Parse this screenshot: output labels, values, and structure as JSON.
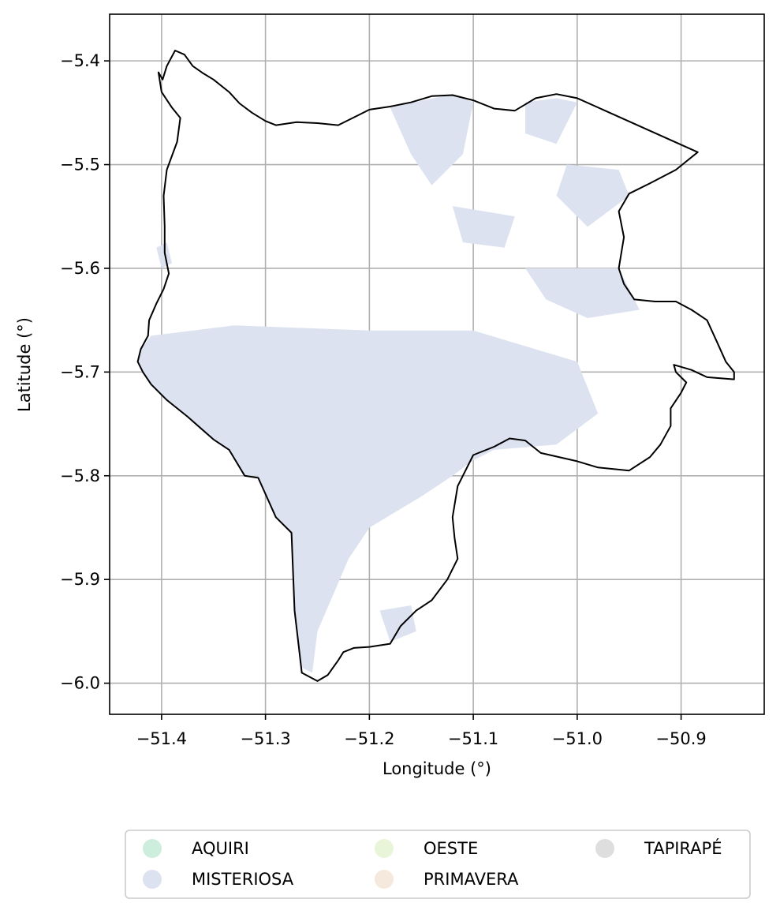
{
  "chart_data": {
    "type": "map",
    "xlabel": "Longitude (°)",
    "ylabel": "Latitude (°)",
    "xlim": [
      -51.45,
      -50.82
    ],
    "ylim": [
      -6.03,
      -5.355
    ],
    "xticks": [
      -51.4,
      -51.3,
      -51.2,
      -51.1,
      -51.0,
      -50.9
    ],
    "xtick_labels": [
      "−51.4",
      "−51.3",
      "−51.2",
      "−51.1",
      "−51.0",
      "−50.9"
    ],
    "yticks": [
      -5.4,
      -5.5,
      -5.6,
      -5.7,
      -5.8,
      -5.9,
      -6.0
    ],
    "ytick_labels": [
      "−5.4",
      "−5.5",
      "−5.6",
      "−5.7",
      "−5.8",
      "−5.9",
      "−6.0"
    ],
    "grid": true,
    "legend_position": "bottom",
    "legend": [
      {
        "label": "AQUIRI",
        "color": "#cdeedd"
      },
      {
        "label": "MISTERIOSA",
        "color": "#dde2f1"
      },
      {
        "label": "OESTE",
        "color": "#e9f5d8"
      },
      {
        "label": "PRIMAVERA",
        "color": "#f4e9dc"
      },
      {
        "label": "TAPIRAPÉ",
        "color": "#dedede"
      }
    ],
    "boundary": [
      [
        -51.403,
        -5.411
      ],
      [
        -51.399,
        -5.418
      ],
      [
        -51.395,
        -5.405
      ],
      [
        -51.387,
        -5.39
      ],
      [
        -51.378,
        -5.394
      ],
      [
        -51.37,
        -5.405
      ],
      [
        -51.36,
        -5.412
      ],
      [
        -51.35,
        -5.418
      ],
      [
        -51.335,
        -5.43
      ],
      [
        -51.325,
        -5.441
      ],
      [
        -51.313,
        -5.45
      ],
      [
        -51.3,
        -5.458
      ],
      [
        -51.29,
        -5.462
      ],
      [
        -51.27,
        -5.459
      ],
      [
        -51.25,
        -5.46
      ],
      [
        -51.23,
        -5.462
      ],
      [
        -51.21,
        -5.452
      ],
      [
        -51.2,
        -5.447
      ],
      [
        -51.18,
        -5.444
      ],
      [
        -51.16,
        -5.44
      ],
      [
        -51.14,
        -5.434
      ],
      [
        -51.12,
        -5.433
      ],
      [
        -51.1,
        -5.438
      ],
      [
        -51.08,
        -5.446
      ],
      [
        -51.06,
        -5.448
      ],
      [
        -51.05,
        -5.442
      ],
      [
        -51.04,
        -5.436
      ],
      [
        -51.02,
        -5.432
      ],
      [
        -51.0,
        -5.436
      ],
      [
        -50.884,
        -5.488
      ],
      [
        -50.905,
        -5.505
      ],
      [
        -50.93,
        -5.518
      ],
      [
        -50.95,
        -5.528
      ],
      [
        -50.96,
        -5.545
      ],
      [
        -50.955,
        -5.57
      ],
      [
        -50.96,
        -5.6
      ],
      [
        -50.955,
        -5.615
      ],
      [
        -50.945,
        -5.63
      ],
      [
        -50.925,
        -5.632
      ],
      [
        -50.905,
        -5.632
      ],
      [
        -50.89,
        -5.64
      ],
      [
        -50.875,
        -5.65
      ],
      [
        -50.865,
        -5.672
      ],
      [
        -50.857,
        -5.69
      ],
      [
        -50.849,
        -5.7
      ],
      [
        -50.849,
        -5.707
      ],
      [
        -50.875,
        -5.705
      ],
      [
        -50.89,
        -5.698
      ],
      [
        -50.907,
        -5.693
      ],
      [
        -50.905,
        -5.7
      ],
      [
        -50.895,
        -5.71
      ],
      [
        -50.9,
        -5.72
      ],
      [
        -50.91,
        -5.735
      ],
      [
        -50.91,
        -5.752
      ],
      [
        -50.92,
        -5.77
      ],
      [
        -50.93,
        -5.782
      ],
      [
        -50.95,
        -5.795
      ],
      [
        -50.98,
        -5.792
      ],
      [
        -51.0,
        -5.786
      ],
      [
        -51.035,
        -5.778
      ],
      [
        -51.05,
        -5.766
      ],
      [
        -51.065,
        -5.764
      ],
      [
        -51.08,
        -5.772
      ],
      [
        -51.1,
        -5.78
      ],
      [
        -51.115,
        -5.81
      ],
      [
        -51.12,
        -5.84
      ],
      [
        -51.118,
        -5.86
      ],
      [
        -51.115,
        -5.88
      ],
      [
        -51.125,
        -5.9
      ],
      [
        -51.14,
        -5.92
      ],
      [
        -51.155,
        -5.93
      ],
      [
        -51.17,
        -5.945
      ],
      [
        -51.18,
        -5.962
      ],
      [
        -51.2,
        -5.965
      ],
      [
        -51.215,
        -5.966
      ],
      [
        -51.225,
        -5.97
      ],
      [
        -51.23,
        -5.978
      ],
      [
        -51.24,
        -5.992
      ],
      [
        -51.25,
        -5.998
      ],
      [
        -51.265,
        -5.99
      ],
      [
        -51.272,
        -5.93
      ],
      [
        -51.275,
        -5.855
      ],
      [
        -51.29,
        -5.84
      ],
      [
        -51.307,
        -5.802
      ],
      [
        -51.32,
        -5.8
      ],
      [
        -51.335,
        -5.775
      ],
      [
        -51.35,
        -5.765
      ],
      [
        -51.375,
        -5.743
      ],
      [
        -51.395,
        -5.727
      ],
      [
        -51.41,
        -5.712
      ],
      [
        -51.418,
        -5.7
      ],
      [
        -51.423,
        -5.69
      ],
      [
        -51.42,
        -5.678
      ],
      [
        -51.413,
        -5.665
      ],
      [
        -51.412,
        -5.65
      ],
      [
        -51.405,
        -5.634
      ],
      [
        -51.398,
        -5.62
      ],
      [
        -51.393,
        -5.605
      ],
      [
        -51.397,
        -5.585
      ],
      [
        -51.397,
        -5.56
      ],
      [
        -51.398,
        -5.53
      ],
      [
        -51.395,
        -5.505
      ],
      [
        -51.385,
        -5.478
      ],
      [
        -51.382,
        -5.455
      ],
      [
        -51.39,
        -5.445
      ],
      [
        -51.4,
        -5.43
      ],
      [
        -51.403,
        -5.411
      ]
    ],
    "regions": [
      {
        "name": "MISTERIOSA",
        "polygon": [
          [
            -51.18,
            -5.445
          ],
          [
            -51.12,
            -5.432
          ],
          [
            -51.1,
            -5.44
          ],
          [
            -51.11,
            -5.49
          ],
          [
            -51.14,
            -5.52
          ],
          [
            -51.16,
            -5.49
          ]
        ]
      },
      {
        "name": "MISTERIOSA",
        "polygon": [
          [
            -51.05,
            -5.44
          ],
          [
            -51.02,
            -5.436
          ],
          [
            -51.0,
            -5.44
          ],
          [
            -51.02,
            -5.48
          ],
          [
            -51.05,
            -5.47
          ]
        ]
      },
      {
        "name": "MISTERIOSA",
        "polygon": [
          [
            -51.01,
            -5.5
          ],
          [
            -50.96,
            -5.505
          ],
          [
            -50.95,
            -5.53
          ],
          [
            -50.99,
            -5.56
          ],
          [
            -51.02,
            -5.53
          ]
        ]
      },
      {
        "name": "MISTERIOSA",
        "polygon": [
          [
            -51.12,
            -5.54
          ],
          [
            -51.06,
            -5.55
          ],
          [
            -51.07,
            -5.58
          ],
          [
            -51.11,
            -5.575
          ]
        ]
      },
      {
        "name": "MISTERIOSA",
        "polygon": [
          [
            -51.05,
            -5.6
          ],
          [
            -50.96,
            -5.6
          ],
          [
            -50.94,
            -5.64
          ],
          [
            -50.99,
            -5.648
          ],
          [
            -51.03,
            -5.63
          ]
        ]
      },
      {
        "name": "MISTERIOSA",
        "polygon": [
          [
            -51.41,
            -5.665
          ],
          [
            -51.33,
            -5.655
          ],
          [
            -51.2,
            -5.66
          ],
          [
            -51.1,
            -5.66
          ],
          [
            -51.0,
            -5.69
          ],
          [
            -50.98,
            -5.74
          ],
          [
            -51.02,
            -5.77
          ],
          [
            -51.08,
            -5.775
          ],
          [
            -51.1,
            -5.785
          ],
          [
            -51.12,
            -5.8
          ],
          [
            -51.15,
            -5.82
          ],
          [
            -51.2,
            -5.85
          ],
          [
            -51.22,
            -5.88
          ],
          [
            -51.25,
            -5.95
          ],
          [
            -51.255,
            -5.99
          ],
          [
            -51.265,
            -5.985
          ],
          [
            -51.272,
            -5.93
          ],
          [
            -51.275,
            -5.855
          ],
          [
            -51.29,
            -5.84
          ],
          [
            -51.307,
            -5.8
          ],
          [
            -51.32,
            -5.8
          ],
          [
            -51.335,
            -5.775
          ],
          [
            -51.35,
            -5.765
          ],
          [
            -51.375,
            -5.743
          ],
          [
            -51.395,
            -5.727
          ],
          [
            -51.41,
            -5.712
          ],
          [
            -51.418,
            -5.7
          ],
          [
            -51.423,
            -5.69
          ],
          [
            -51.42,
            -5.678
          ]
        ]
      },
      {
        "name": "MISTERIOSA",
        "polygon": [
          [
            -51.19,
            -5.93
          ],
          [
            -51.16,
            -5.925
          ],
          [
            -51.155,
            -5.95
          ],
          [
            -51.18,
            -5.96
          ]
        ]
      },
      {
        "name": "MISTERIOSA",
        "polygon": [
          [
            -51.405,
            -5.58
          ],
          [
            -51.395,
            -5.575
          ],
          [
            -51.39,
            -5.595
          ],
          [
            -51.4,
            -5.6
          ]
        ]
      }
    ]
  }
}
